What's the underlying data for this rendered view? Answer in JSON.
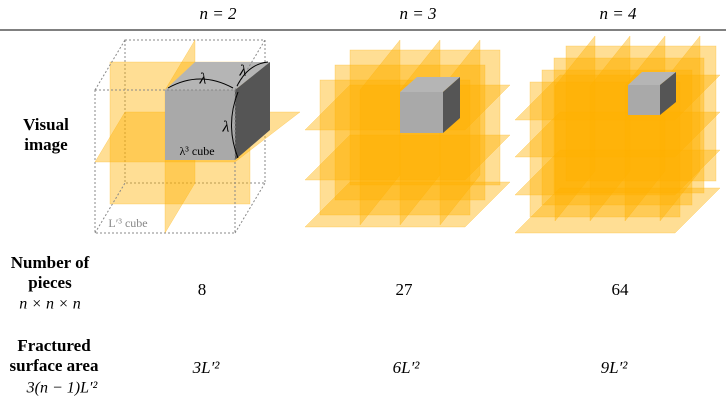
{
  "header": {
    "columns": [
      "n = 2",
      "n = 3",
      "n = 4"
    ]
  },
  "rows": [
    {
      "label_lines": [
        "Visual",
        "image"
      ]
    },
    {
      "label_lines": [
        "Number of",
        "pieces"
      ],
      "formula": "n × n × n",
      "values": [
        "8",
        "27",
        "64"
      ]
    },
    {
      "label_lines": [
        "Fractured",
        "surface area"
      ],
      "formula": "3(n − 1)L′²",
      "values": [
        "3L′²",
        "6L′²",
        "9L′²"
      ]
    }
  ],
  "figure": {
    "edge_labels": [
      "λ",
      "λ",
      "λ"
    ],
    "small_cube": "λ³ cube",
    "big_cube": "L′³ cube"
  }
}
